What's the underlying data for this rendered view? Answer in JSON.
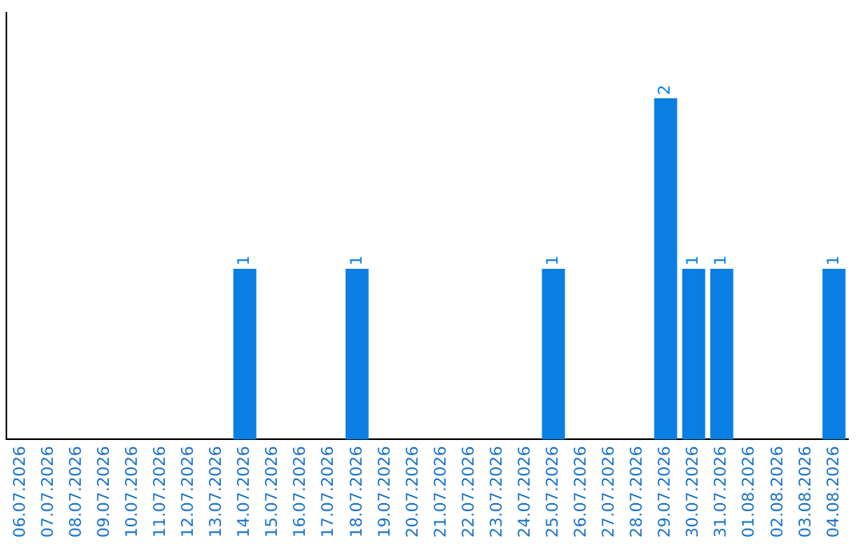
{
  "chart_data": {
    "type": "bar",
    "categories": [
      "06.07.2026",
      "07.07.2026",
      "08.07.2026",
      "09.07.2026",
      "10.07.2026",
      "11.07.2026",
      "12.07.2026",
      "13.07.2026",
      "14.07.2026",
      "15.07.2026",
      "16.07.2026",
      "17.07.2026",
      "18.07.2026",
      "19.07.2026",
      "20.07.2026",
      "21.07.2026",
      "22.07.2026",
      "23.07.2026",
      "24.07.2026",
      "25.07.2026",
      "26.07.2026",
      "27.07.2026",
      "28.07.2026",
      "29.07.2026",
      "30.07.2026",
      "31.07.2026",
      "01.08.2026",
      "02.08.2026",
      "03.08.2026",
      "04.08.2026"
    ],
    "values": [
      0,
      0,
      0,
      0,
      0,
      0,
      0,
      0,
      1,
      0,
      0,
      0,
      1,
      0,
      0,
      0,
      0,
      0,
      0,
      1,
      0,
      0,
      0,
      2,
      1,
      1,
      0,
      0,
      0,
      1
    ],
    "value_labels": [
      null,
      null,
      null,
      null,
      null,
      null,
      null,
      null,
      "1",
      null,
      null,
      null,
      "1",
      null,
      null,
      null,
      null,
      null,
      null,
      "1",
      null,
      null,
      null,
      "2",
      "1",
      "1",
      null,
      null,
      null,
      "1"
    ],
    "color": "#0a7fe3",
    "grid": false,
    "legend": false
  }
}
